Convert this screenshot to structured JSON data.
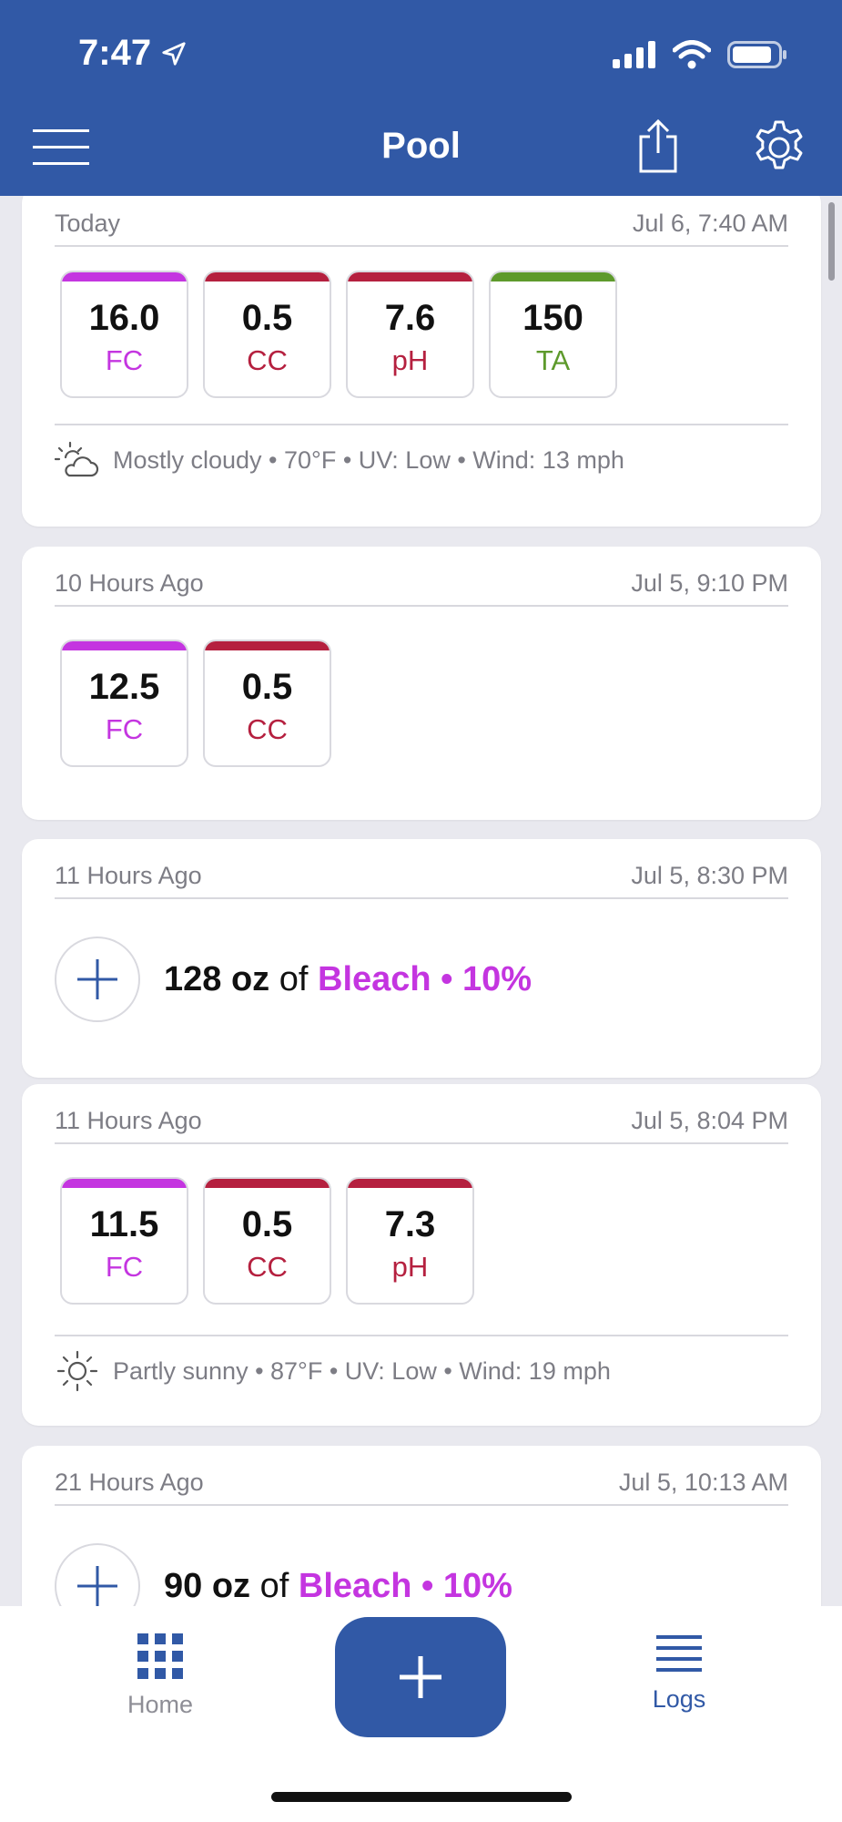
{
  "status_bar": {
    "time": "7:47"
  },
  "header": {
    "title": "Pool"
  },
  "entries": [
    {
      "relative": "Today",
      "date": "Jul 6, 7:40 AM",
      "readings": [
        {
          "value": "16.0",
          "label": "FC",
          "color": "#c435e0"
        },
        {
          "value": "0.5",
          "label": "CC",
          "color": "#b5203f"
        },
        {
          "value": "7.6",
          "label": "pH",
          "color": "#b5203f"
        },
        {
          "value": "150",
          "label": "TA",
          "color": "#5e9a2c"
        }
      ],
      "weather": "Mostly cloudy • 70°F • UV: Low • Wind: 13 mph",
      "weather_icon": "partly-cloudy-icon"
    },
    {
      "relative": "10 Hours Ago",
      "date": "Jul 5, 9:10 PM",
      "readings": [
        {
          "value": "12.5",
          "label": "FC",
          "color": "#c435e0"
        },
        {
          "value": "0.5",
          "label": "CC",
          "color": "#b5203f"
        }
      ]
    },
    {
      "relative": "11 Hours Ago",
      "date": "Jul 5, 8:30 PM",
      "dose": {
        "amount": "128 oz",
        "of": "of",
        "chemical": "Bleach • 10%"
      }
    },
    {
      "relative": "11 Hours Ago",
      "date": "Jul 5, 8:04 PM",
      "readings": [
        {
          "value": "11.5",
          "label": "FC",
          "color": "#c435e0"
        },
        {
          "value": "0.5",
          "label": "CC",
          "color": "#b5203f"
        },
        {
          "value": "7.3",
          "label": "pH",
          "color": "#b5203f"
        }
      ],
      "weather": "Partly sunny • 87°F • UV: Low • Wind: 19 mph",
      "weather_icon": "sun-icon"
    },
    {
      "relative": "21 Hours Ago",
      "date": "Jul 5, 10:13 AM",
      "dose": {
        "amount": "90 oz",
        "of": "of",
        "chemical": "Bleach • 10%"
      }
    }
  ],
  "tabbar": {
    "home_label": "Home",
    "logs_label": "Logs",
    "inactive_color": "#8e8e96",
    "active_color": "#3159a6"
  },
  "colors": {
    "accent": "#3159a6",
    "background": "#e9e9ef"
  }
}
